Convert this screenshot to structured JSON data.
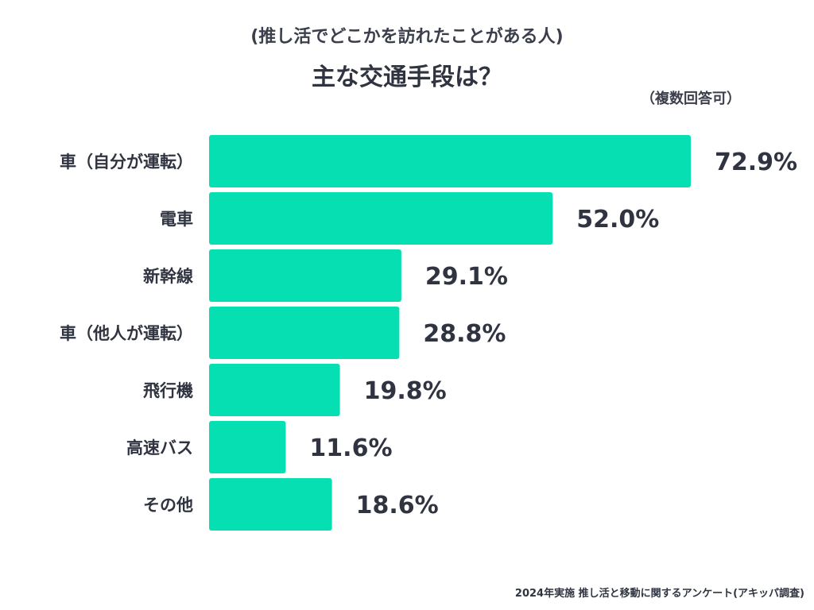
{
  "chart_data": {
    "type": "bar",
    "orientation": "horizontal",
    "subtitle": "(推し活でどこかを訪れたことがある人)",
    "title": "主な交通手段は？",
    "note": "（複数回答可）",
    "unit": "%",
    "categories": [
      "車（自分が運転）",
      "電車",
      "新幹線",
      "車（他人が運転）",
      "飛行機",
      "高速バス",
      "その他"
    ],
    "values": [
      72.9,
      52.0,
      29.1,
      28.8,
      19.8,
      11.6,
      18.6
    ],
    "value_labels": [
      "72.9%",
      "52.0%",
      "29.1%",
      "28.8%",
      "19.8%",
      "11.6%",
      "18.6%"
    ],
    "bar_color": "#06dfb2",
    "grid": false,
    "legend": "none"
  },
  "footer": {
    "source": "2024年実施 推し活と移動に関するアンケート(アキッパ調査)"
  }
}
